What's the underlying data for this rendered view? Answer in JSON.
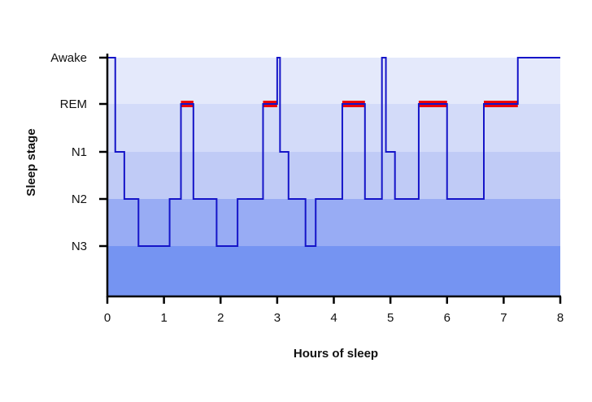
{
  "chart_data": {
    "type": "line",
    "title": "",
    "xlabel": "Hours of sleep",
    "ylabel": "Sleep stage",
    "xlim": [
      0,
      8
    ],
    "x_ticks": [
      0,
      1,
      2,
      3,
      4,
      5,
      6,
      7,
      8
    ],
    "x_tick_labels": [
      "0",
      "1",
      "2",
      "3",
      "4",
      "5",
      "6",
      "7",
      "8"
    ],
    "y_categories": [
      "Awake",
      "REM",
      "N1",
      "N2",
      "N3"
    ],
    "bands": [
      {
        "stage": "Awake",
        "color": "#e4e9fb"
      },
      {
        "stage": "REM",
        "color": "#d3dbf9"
      },
      {
        "stage": "N1",
        "color": "#c0cbf6"
      },
      {
        "stage": "N2",
        "color": "#98acf4"
      },
      {
        "stage": "N3",
        "color": "#7594f2"
      }
    ],
    "series": [
      {
        "color": "#1515c8",
        "steps": [
          {
            "x": 0.0,
            "stage": "Awake"
          },
          {
            "x": 0.14,
            "stage": "N1"
          },
          {
            "x": 0.3,
            "stage": "N2"
          },
          {
            "x": 0.55,
            "stage": "N3"
          },
          {
            "x": 1.1,
            "stage": "N2"
          },
          {
            "x": 1.3,
            "stage": "REM"
          },
          {
            "x": 1.52,
            "stage": "N2"
          },
          {
            "x": 1.93,
            "stage": "N3"
          },
          {
            "x": 2.3,
            "stage": "N2"
          },
          {
            "x": 2.75,
            "stage": "REM"
          },
          {
            "x": 3.0,
            "stage": "Awake"
          },
          {
            "x": 3.05,
            "stage": "N1"
          },
          {
            "x": 3.2,
            "stage": "N2"
          },
          {
            "x": 3.5,
            "stage": "N3"
          },
          {
            "x": 3.68,
            "stage": "N2"
          },
          {
            "x": 4.15,
            "stage": "REM"
          },
          {
            "x": 4.55,
            "stage": "N2"
          },
          {
            "x": 4.85,
            "stage": "Awake"
          },
          {
            "x": 4.92,
            "stage": "N1"
          },
          {
            "x": 5.08,
            "stage": "N2"
          },
          {
            "x": 5.5,
            "stage": "REM"
          },
          {
            "x": 6.0,
            "stage": "N2"
          },
          {
            "x": 6.65,
            "stage": "REM"
          },
          {
            "x": 7.25,
            "stage": "Awake"
          },
          {
            "x": 8.0,
            "stage": "Awake"
          }
        ]
      }
    ],
    "rem_highlights": {
      "color": "#ee0000",
      "segments": [
        [
          1.3,
          1.52
        ],
        [
          2.75,
          3.0
        ],
        [
          4.15,
          4.55
        ],
        [
          5.5,
          6.0
        ],
        [
          6.65,
          7.25
        ]
      ]
    },
    "grid": false,
    "legend": "none"
  }
}
